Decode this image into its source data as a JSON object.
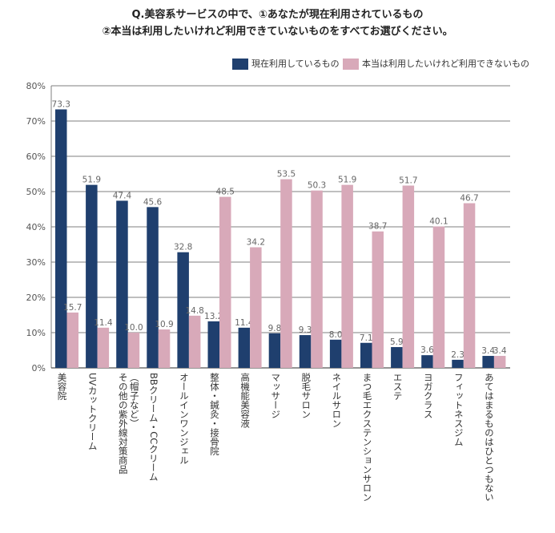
{
  "title_line1": "Q.美容系サービスの中で、①あなたが現在利用されているもの",
  "title_line2": "②本当は利用したいけれど利用できていないものをすべてお選びください。",
  "chart_data": {
    "type": "bar",
    "categories": [
      "美容院",
      "UVカットクリーム",
      "その他の紫外線対策商品(帽子など)",
      "BBクリーム・CCクリーム",
      "オールインワンジェル",
      "整体・鍼灸・接骨院",
      "高機能美容液",
      "マッサージ",
      "脱毛サロン",
      "ネイルサロン",
      "まつ毛エクステンションサロン",
      "エステ",
      "ヨガクラス",
      "フィットネスジム",
      "あてはまるものはひとつもない"
    ],
    "category_lines": [
      [
        "美容院"
      ],
      [
        "UVカットクリーム"
      ],
      [
        "その他の紫外線対策商品",
        "（帽子など）"
      ],
      [
        "BBクリーム・CCクリーム"
      ],
      [
        "オールインワンジェル"
      ],
      [
        "整体・鍼灸・接骨院"
      ],
      [
        "高機能美容液"
      ],
      [
        "マッサージ"
      ],
      [
        "脱毛サロン"
      ],
      [
        "ネイルサロン"
      ],
      [
        "まつ毛エクステンションサロン"
      ],
      [
        "エステ"
      ],
      [
        "ヨガクラス"
      ],
      [
        "フィットネスジム"
      ],
      [
        "あてはまるものはひとつもない"
      ]
    ],
    "series": [
      {
        "name": "現在利用しているもの",
        "color": "#1f3f6e",
        "values": [
          73.3,
          51.9,
          47.4,
          45.6,
          32.8,
          13.2,
          11.4,
          9.8,
          9.3,
          8.0,
          7.1,
          5.9,
          3.6,
          2.3,
          3.4
        ]
      },
      {
        "name": "本当は利用したいけれど利用できないもの",
        "color": "#d8a9b9",
        "values": [
          15.7,
          11.4,
          10.0,
          10.9,
          14.8,
          48.5,
          34.2,
          53.5,
          50.3,
          51.9,
          38.7,
          51.7,
          40.1,
          46.7,
          3.4
        ]
      }
    ],
    "value_labels": [
      [
        "73.3",
        "51.9",
        "47.4",
        "45.6",
        "32.8",
        "13.2",
        "11.4",
        "9.8",
        "9.3",
        "8.0",
        "7.1",
        "5.9",
        "3.6",
        "2.3",
        "3.4"
      ],
      [
        "15.7",
        "11.4",
        "10.0",
        "10.9",
        "14.8",
        "48.5",
        "34.2",
        "53.5",
        "50.3",
        "51.9",
        "38.7",
        "51.7",
        "40.1",
        "46.7",
        "3.4"
      ]
    ],
    "y_ticks": [
      "0%",
      "10%",
      "20%",
      "30%",
      "40%",
      "50%",
      "60%",
      "70%",
      "80%"
    ],
    "ylim": [
      0,
      80
    ],
    "grid": true,
    "legend_position": "top-right"
  }
}
